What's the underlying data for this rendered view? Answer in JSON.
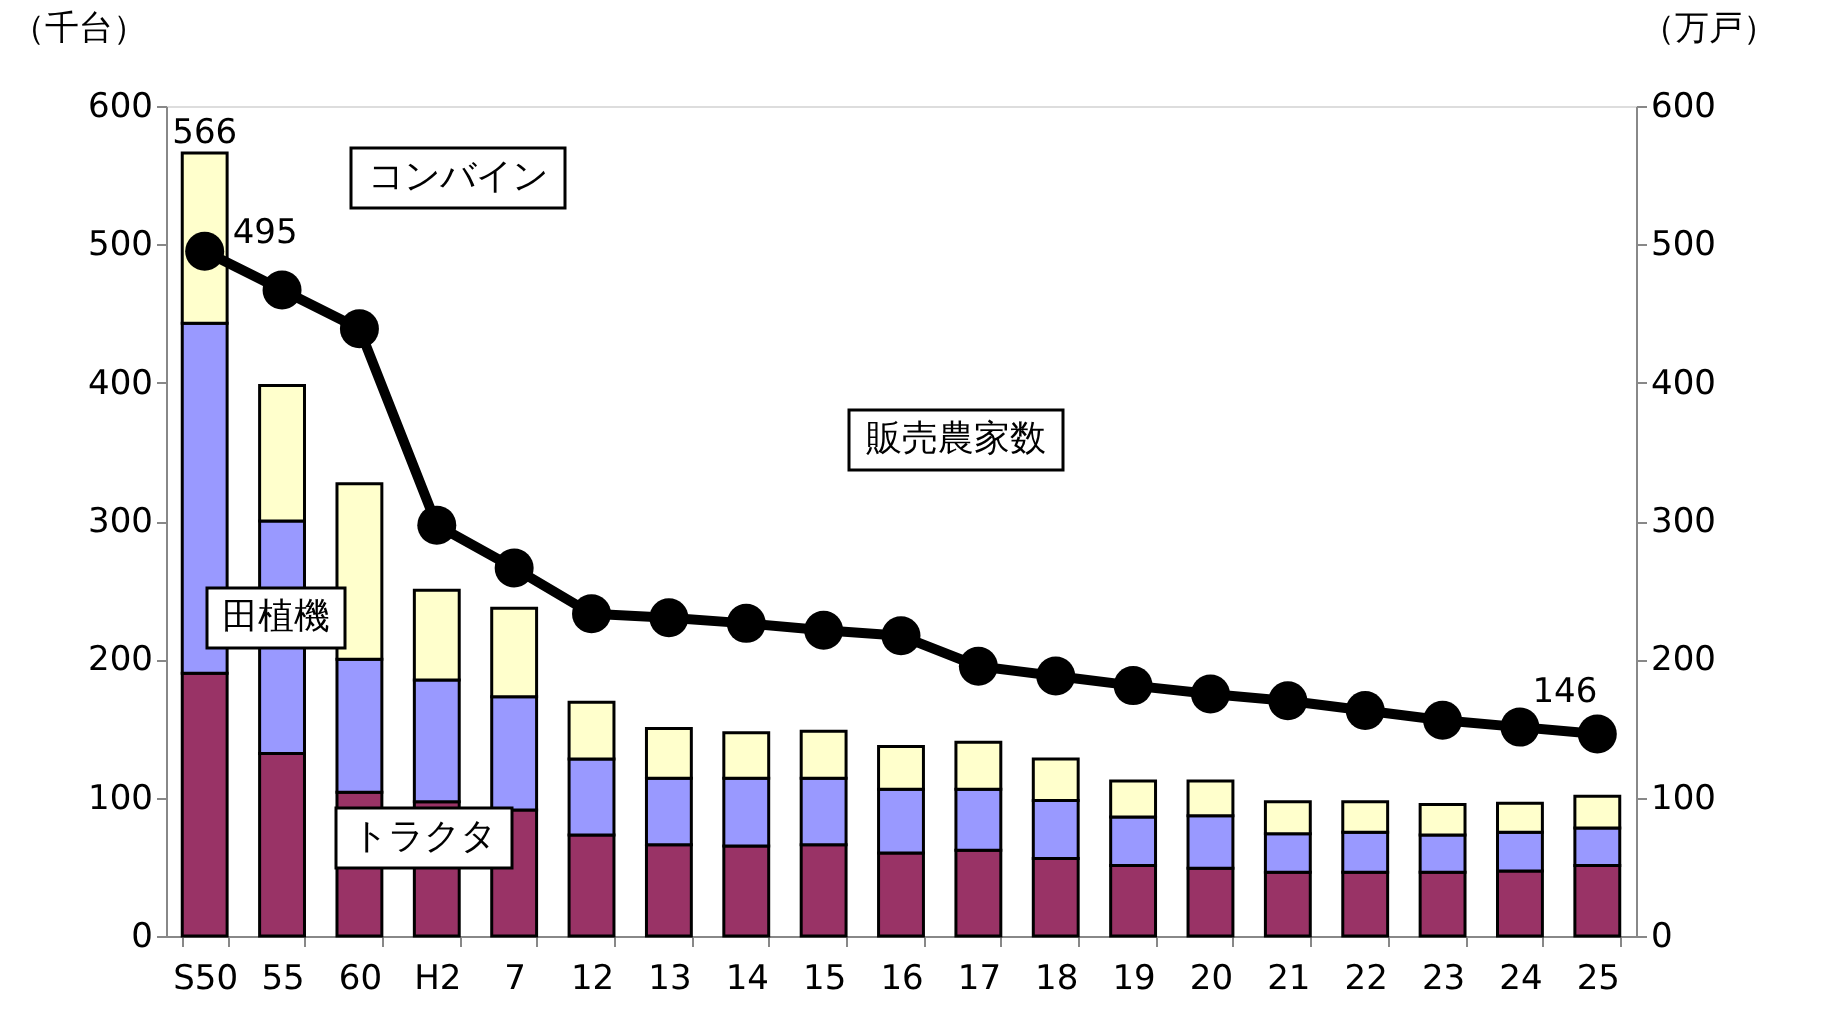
{
  "chart_data": {
    "type": "bar",
    "stacked": true,
    "ylabel": "（千台）",
    "y2label": "（万戸）",
    "categories": [
      "S50",
      "55",
      "60",
      "H2",
      "7",
      "12",
      "13",
      "14",
      "15",
      "16",
      "17",
      "18",
      "19",
      "20",
      "21",
      "22",
      "23",
      "24",
      "25"
    ],
    "series": [
      {
        "name": "トラクタ",
        "color": "#993366",
        "values": [
          190,
          132,
          104,
          97,
          91,
          73,
          66,
          65,
          66,
          60,
          62,
          56,
          51,
          49,
          46,
          46,
          46,
          47,
          51
        ]
      },
      {
        "name": "田植機",
        "color": "#9999ff",
        "values": [
          253,
          168,
          96,
          88,
          82,
          55,
          48,
          49,
          48,
          46,
          44,
          42,
          35,
          38,
          28,
          29,
          27,
          28,
          27
        ]
      },
      {
        "name": "コンバイン",
        "color": "#ffffcc",
        "values": [
          123,
          98,
          127,
          65,
          64,
          41,
          36,
          33,
          34,
          31,
          34,
          30,
          26,
          25,
          23,
          22,
          22,
          21,
          23
        ]
      },
      {
        "name": "販売農家数",
        "type": "line",
        "axis": "y2",
        "color": "#000000",
        "marker": "circle",
        "values": [
          495,
          467,
          439,
          297,
          266,
          233,
          230,
          226,
          221,
          217,
          195,
          188,
          181,
          175,
          170,
          163,
          156,
          151,
          146
        ],
        "value_labels": [
          "495",
          null,
          null,
          null,
          null,
          null,
          null,
          null,
          null,
          null,
          null,
          null,
          null,
          null,
          null,
          null,
          null,
          null,
          "146"
        ]
      }
    ],
    "totals": [
      "566",
      null,
      null,
      null,
      null,
      null,
      null,
      null,
      null,
      null,
      null,
      null,
      null,
      null,
      null,
      null,
      null,
      null,
      null
    ],
    "ylim": [
      0,
      600
    ],
    "yticks": [
      0,
      100,
      200,
      300,
      400,
      500,
      600
    ],
    "y2lim": [
      0,
      600
    ],
    "y2ticks": [
      0,
      100,
      200,
      300,
      400,
      500,
      600
    ],
    "grid": false,
    "legend": false
  }
}
